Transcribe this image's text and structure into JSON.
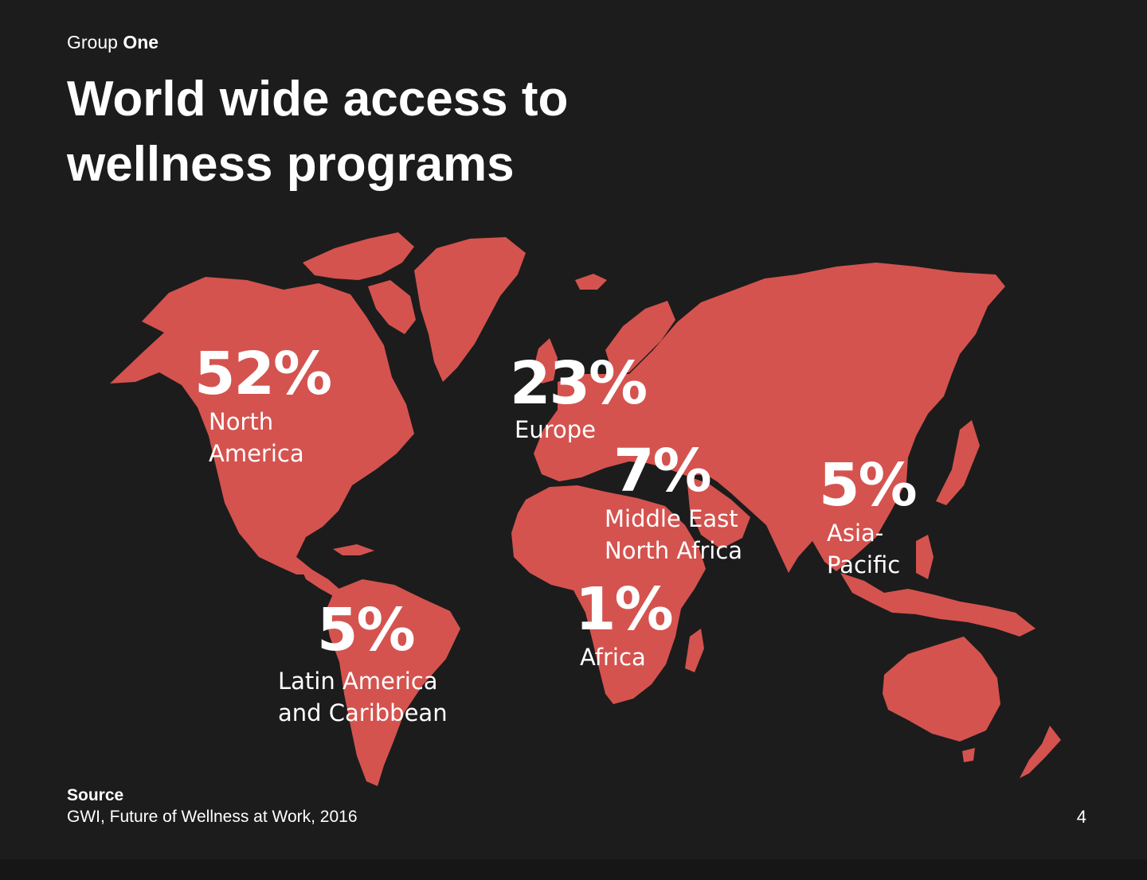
{
  "slide": {
    "brand_regular": "Group",
    "brand_bold": "One",
    "title_line1": "World wide access to",
    "title_line2": "wellness programs",
    "source_heading": "Source",
    "source_text": "GWI, Future of Wellness at Work, 2016",
    "page_number": "4"
  },
  "colors": {
    "background": "#1c1c1c",
    "land": "#d4534f",
    "text": "#ffffff"
  },
  "regions": [
    {
      "value": "52%",
      "label_line1": "North",
      "label_line2": "America"
    },
    {
      "value": "23%",
      "label_line1": "Europe",
      "label_line2": ""
    },
    {
      "value": "7%",
      "label_line1": "Middle East",
      "label_line2": "North Africa"
    },
    {
      "value": "5%",
      "label_line1": "Asia-",
      "label_line2": "Pacific"
    },
    {
      "value": "5%",
      "label_line1": "Latin America",
      "label_line2": "and Caribbean"
    },
    {
      "value": "1%",
      "label_line1": "Africa",
      "label_line2": ""
    }
  ]
}
